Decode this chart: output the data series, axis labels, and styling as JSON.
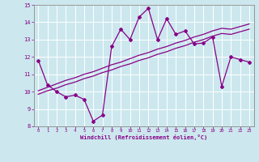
{
  "xlabel": "Windchill (Refroidissement éolien,°C)",
  "bg_color": "#cce8ee",
  "line_color": "#880088",
  "grid_color": "#aacccc",
  "x_values": [
    0,
    1,
    2,
    3,
    4,
    5,
    6,
    7,
    8,
    9,
    10,
    11,
    12,
    13,
    14,
    15,
    16,
    17,
    18,
    19,
    20,
    21,
    22,
    23
  ],
  "y_zigzag": [
    11.8,
    10.4,
    10.0,
    9.7,
    9.8,
    9.55,
    8.3,
    8.65,
    12.6,
    13.6,
    13.0,
    14.3,
    14.8,
    13.0,
    14.2,
    13.3,
    13.5,
    12.75,
    12.8,
    13.15,
    10.3,
    12.0,
    11.85,
    11.7
  ],
  "y_trend1": [
    10.05,
    10.25,
    10.45,
    10.65,
    10.8,
    11.0,
    11.15,
    11.35,
    11.55,
    11.7,
    11.9,
    12.1,
    12.25,
    12.45,
    12.6,
    12.8,
    12.95,
    13.15,
    13.3,
    13.5,
    13.65,
    13.6,
    13.75,
    13.9
  ],
  "y_trend2": [
    9.85,
    10.05,
    10.2,
    10.4,
    10.55,
    10.75,
    10.9,
    11.1,
    11.25,
    11.45,
    11.6,
    11.8,
    11.95,
    12.15,
    12.3,
    12.5,
    12.65,
    12.85,
    13.0,
    13.2,
    13.35,
    13.3,
    13.45,
    13.6
  ],
  "ylim": [
    8,
    15
  ],
  "yticks": [
    8,
    9,
    10,
    11,
    12,
    13,
    14,
    15
  ],
  "xlim": [
    -0.5,
    23.5
  ],
  "xticks": [
    0,
    1,
    2,
    3,
    4,
    5,
    6,
    7,
    8,
    9,
    10,
    11,
    12,
    13,
    14,
    15,
    16,
    17,
    18,
    19,
    20,
    21,
    22,
    23
  ],
  "spine_color": "#888888"
}
